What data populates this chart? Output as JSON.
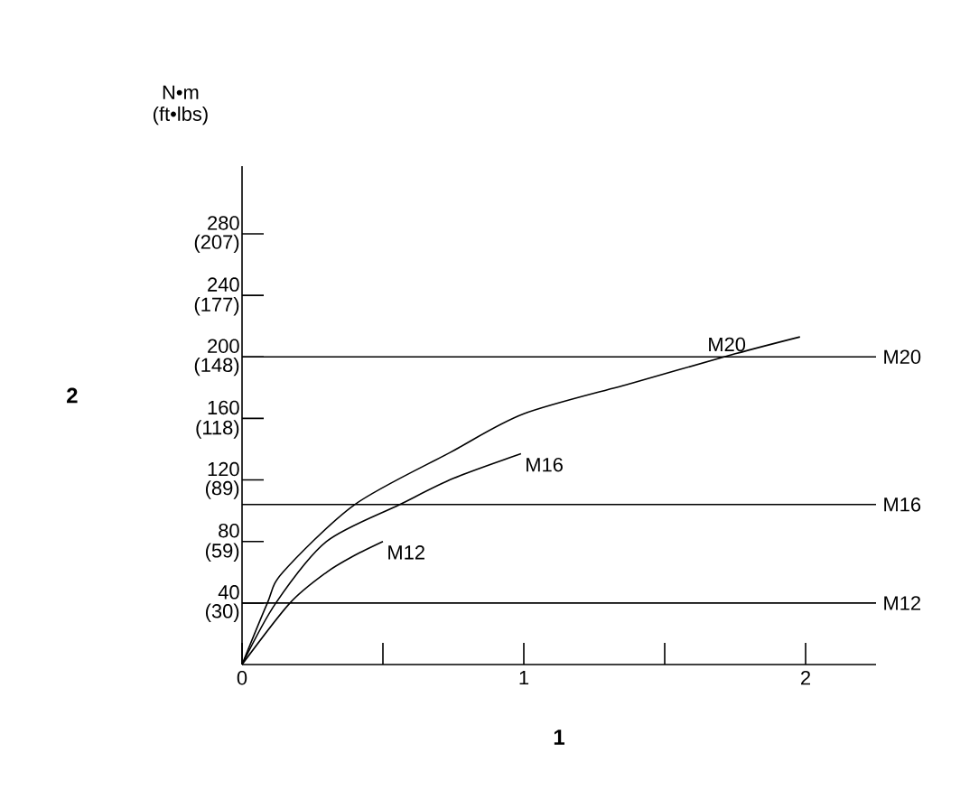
{
  "chart_data": {
    "type": "line",
    "xlabel": "1",
    "xlim": [
      0,
      2.25
    ],
    "ylim": [
      0,
      324
    ],
    "xticks": [
      0,
      {
        "value": 0.5,
        "label": null
      },
      1,
      {
        "value": 1.5,
        "label": null
      },
      2
    ],
    "yticks": [
      40,
      80,
      120,
      160,
      200,
      240,
      280
    ],
    "y2lim": [
      0,
      239
    ],
    "y2ticks": [
      {
        "value": 30,
        "label": "(30)"
      },
      {
        "value": 59,
        "label": "(59)"
      },
      {
        "value": 89,
        "label": "(89)"
      },
      {
        "value": 118,
        "label": "(118)"
      },
      {
        "value": 148,
        "label": "(148)"
      },
      {
        "value": 177,
        "label": "(177)"
      },
      {
        "value": 207,
        "label": "(207)"
      }
    ],
    "marker": "none",
    "line_style": "solid",
    "series": [
      {
        "color": "#000000",
        "x": [
          0,
          0.09,
          0.145,
          0.4,
          0.74,
          1,
          1.385,
          1.75,
          1.98
        ],
        "values": [
          0,
          40,
          60,
          104,
          138,
          163,
          183,
          202,
          213
        ]
      },
      {
        "color": "#000000",
        "x": [
          0,
          0.12,
          0.3,
          0.56,
          0.75,
          0.99
        ],
        "values": [
          0,
          40,
          80,
          104,
          121,
          137
        ]
      },
      {
        "color": "#000000",
        "x": [
          0,
          0.17,
          0.3,
          0.4,
          0.5
        ],
        "values": [
          0,
          40,
          60,
          71,
          80
        ]
      }
    ],
    "ref_lines": [
      {
        "axis": "y",
        "value": 200,
        "label": "M20",
        "color": "#000000"
      },
      {
        "axis": "y",
        "value": 104,
        "label": "M16",
        "color": "#000000"
      },
      {
        "axis": "y",
        "value": 40,
        "label": "M12",
        "color": "#000000"
      }
    ],
    "annotations": [
      "N•m (ft•lbs)",
      "2",
      {
        "text": "M20",
        "x": 1.72,
        "y": 201
      },
      {
        "text": "M16",
        "x": 0.99,
        "y": 137
      },
      {
        "text": "M12",
        "x": 0.5,
        "y": 80
      }
    ]
  }
}
